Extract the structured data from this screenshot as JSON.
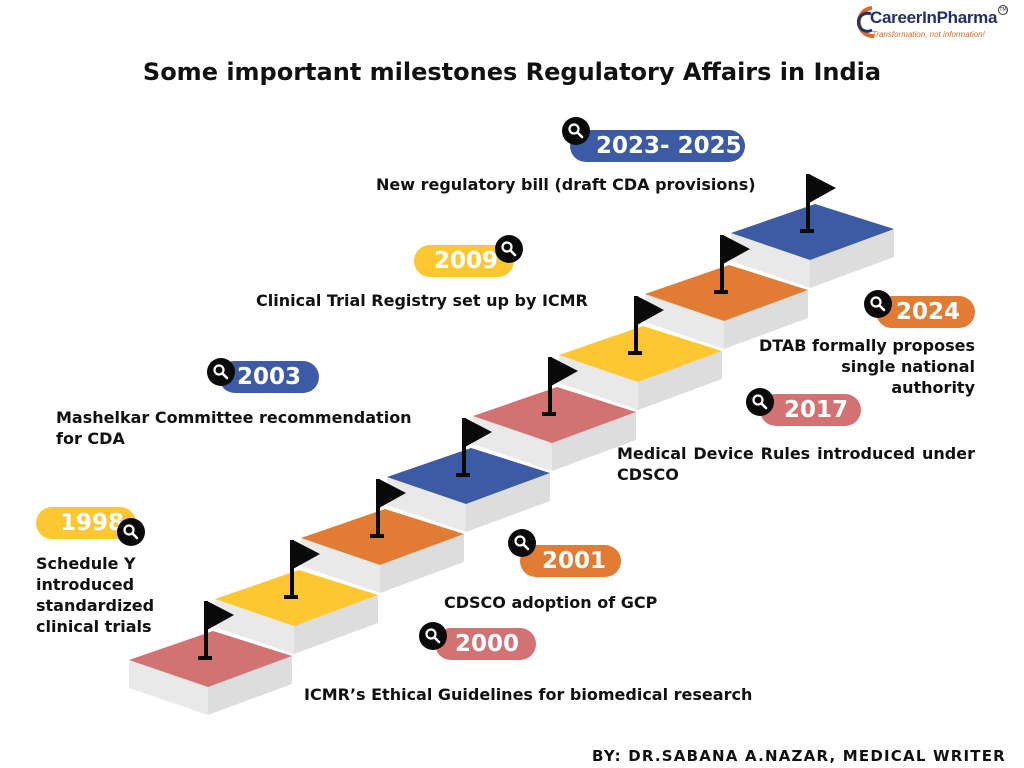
{
  "logo": {
    "name": "CareerInPharma",
    "tagline": "Transformation, not information!",
    "tm": "TM"
  },
  "title": "Some important milestones Regulatory Affairs in India",
  "colors": {
    "red": "#d37272",
    "yellow": "#fcc730",
    "orange": "#e27c34",
    "blue": "#3d5aa4",
    "riser": "#dddddd",
    "flag": "#0a0a0a"
  },
  "milestones": [
    {
      "year": "1998",
      "text": "Schedule Y introduced standardized clinical trials",
      "color": "yellow"
    },
    {
      "year": "2000",
      "text": "ICMR’s Ethical Guidelines for biomedical research",
      "color": "red"
    },
    {
      "year": "2001",
      "text": "CDSCO adoption of GCP",
      "color": "orange"
    },
    {
      "year": "2003",
      "text": "Mashelkar Committee recommendation for CDA",
      "color": "blue"
    },
    {
      "year": "2009",
      "text": "Clinical Trial Registry set up by ICMR",
      "color": "yellow"
    },
    {
      "year": "2017",
      "text": "Medical Device Rules introduced under CDSCO",
      "color": "red"
    },
    {
      "year": "2023- 2025",
      "text": "New regulatory bill (draft CDA provisions)",
      "color": "blue"
    },
    {
      "year": "2024",
      "text": "DTAB formally proposes single national authority",
      "color": "orange"
    }
  ],
  "stairs": {
    "step_colors": [
      "red",
      "yellow",
      "orange",
      "blue",
      "red",
      "yellow",
      "orange",
      "blue"
    ],
    "flag_icon": "flag-icon"
  },
  "byline": "BY: DR.SABANA A.NAZAR, MEDICAL WRITER"
}
